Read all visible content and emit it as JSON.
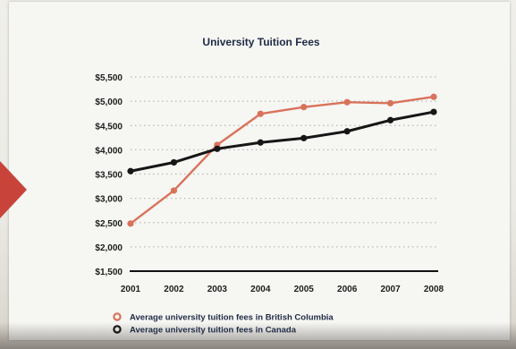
{
  "colors": {
    "bc": "#d9725a",
    "canada": "#161616",
    "grid": "#b9b9b9",
    "title": "#1e2a44"
  },
  "chart_data": {
    "type": "line",
    "title": "University Tuition Fees",
    "xlabel": "",
    "ylabel": "",
    "x": [
      "2001",
      "2002",
      "2003",
      "2004",
      "2005",
      "2006",
      "2007",
      "2008"
    ],
    "ylim": [
      1500,
      5500
    ],
    "yticks": [
      "$5,500",
      "$5,000",
      "$4,500",
      "$4,000",
      "$3,500",
      "$3,000",
      "$2,500",
      "$2,000",
      "$1,500"
    ],
    "ytick_values": [
      5500,
      5000,
      4500,
      4000,
      3500,
      3000,
      2500,
      2000,
      1500
    ],
    "grid": true,
    "legend_position": "bottom",
    "series": [
      {
        "name": "Average university tuition fees in British Columbia",
        "key": "bc",
        "values": [
          2480,
          3160,
          4100,
          4740,
          4880,
          4980,
          4960,
          5090
        ]
      },
      {
        "name": "Average university tuition fees in Canada",
        "key": "canada",
        "values": [
          3560,
          3740,
          4020,
          4150,
          4240,
          4380,
          4610,
          4780
        ]
      }
    ]
  }
}
